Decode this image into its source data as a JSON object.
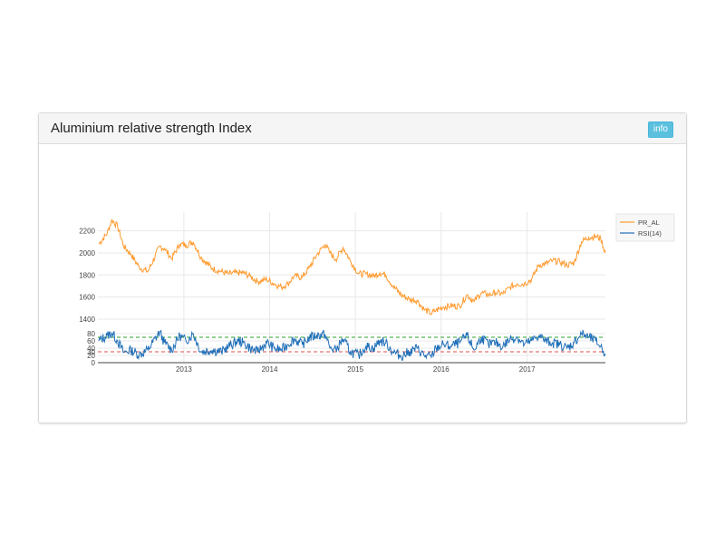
{
  "panel": {
    "title": "Aluminium relative strength Index",
    "info_label": "info"
  },
  "colors": {
    "price": "#ff9a2e",
    "rsi": "#1f6fb8",
    "overbought_line": "#2ca02c",
    "oversold_line": "#e05050",
    "grid": "#e8e8e8"
  },
  "chart_data": [
    {
      "type": "line",
      "series": [
        {
          "name": "PR_AL"
        }
      ],
      "x_range": [
        "2012-01-01",
        "2017-11-30"
      ],
      "y_range": [
        1400,
        2320
      ],
      "y_ticks": [
        1400,
        1600,
        1800,
        2000,
        2200
      ],
      "key_points": [
        [
          "2012-01-05",
          2080
        ],
        [
          "2012-02-10",
          2180
        ],
        [
          "2012-03-01",
          2300
        ],
        [
          "2012-03-25",
          2240
        ],
        [
          "2012-04-20",
          2060
        ],
        [
          "2012-05-20",
          1990
        ],
        [
          "2012-06-25",
          1870
        ],
        [
          "2012-08-01",
          1830
        ],
        [
          "2012-09-20",
          2060
        ],
        [
          "2012-10-10",
          2040
        ],
        [
          "2012-11-10",
          1950
        ],
        [
          "2012-12-15",
          2080
        ],
        [
          "2013-01-10",
          2070
        ],
        [
          "2013-02-10",
          2100
        ],
        [
          "2013-03-15",
          1960
        ],
        [
          "2013-05-01",
          1860
        ],
        [
          "2013-06-10",
          1830
        ],
        [
          "2013-07-10",
          1810
        ],
        [
          "2013-08-20",
          1820
        ],
        [
          "2013-09-10",
          1820
        ],
        [
          "2013-10-10",
          1790
        ],
        [
          "2013-11-10",
          1740
        ],
        [
          "2013-12-20",
          1760
        ],
        [
          "2014-01-20",
          1720
        ],
        [
          "2014-02-20",
          1690
        ],
        [
          "2014-03-20",
          1720
        ],
        [
          "2014-04-15",
          1790
        ],
        [
          "2014-05-20",
          1780
        ],
        [
          "2014-06-20",
          1870
        ],
        [
          "2014-07-20",
          1980
        ],
        [
          "2014-08-25",
          2080
        ],
        [
          "2014-09-15",
          2000
        ],
        [
          "2014-10-10",
          1940
        ],
        [
          "2014-11-10",
          2050
        ],
        [
          "2014-12-10",
          1930
        ],
        [
          "2015-01-15",
          1810
        ],
        [
          "2015-02-15",
          1810
        ],
        [
          "2015-03-20",
          1790
        ],
        [
          "2015-04-15",
          1820
        ],
        [
          "2015-05-10",
          1800
        ],
        [
          "2015-06-10",
          1700
        ],
        [
          "2015-07-15",
          1620
        ],
        [
          "2015-08-20",
          1580
        ],
        [
          "2015-09-20",
          1570
        ],
        [
          "2015-10-20",
          1490
        ],
        [
          "2015-11-20",
          1450
        ],
        [
          "2015-12-10",
          1480
        ],
        [
          "2016-01-10",
          1510
        ],
        [
          "2016-02-10",
          1520
        ],
        [
          "2016-03-20",
          1520
        ],
        [
          "2016-04-20",
          1620
        ],
        [
          "2016-05-20",
          1560
        ],
        [
          "2016-06-20",
          1640
        ],
        [
          "2016-07-20",
          1620
        ],
        [
          "2016-08-20",
          1640
        ],
        [
          "2016-09-20",
          1630
        ],
        [
          "2016-10-20",
          1690
        ],
        [
          "2016-11-20",
          1720
        ],
        [
          "2016-12-20",
          1720
        ],
        [
          "2017-01-20",
          1760
        ],
        [
          "2017-02-20",
          1890
        ],
        [
          "2017-03-20",
          1900
        ],
        [
          "2017-04-20",
          1930
        ],
        [
          "2017-05-20",
          1920
        ],
        [
          "2017-06-20",
          1890
        ],
        [
          "2017-07-20",
          1910
        ],
        [
          "2017-08-20",
          2100
        ],
        [
          "2017-09-20",
          2140
        ],
        [
          "2017-10-20",
          2150
        ],
        [
          "2017-11-10",
          2130
        ],
        [
          "2017-11-30",
          2000
        ]
      ]
    },
    {
      "type": "line",
      "series": [
        {
          "name": "RSI(14)"
        }
      ],
      "x_range": [
        "2012-01-01",
        "2017-11-30"
      ],
      "x_ticks": [
        "2013",
        "2014",
        "2015",
        "2016",
        "2017"
      ],
      "y_range": [
        0,
        95
      ],
      "y_ticks": [
        0,
        20,
        30,
        40,
        60,
        80
      ],
      "reference_lines": [
        70,
        30
      ],
      "key_points": [
        [
          "2012-01-05",
          60
        ],
        [
          "2012-02-10",
          75
        ],
        [
          "2012-03-01",
          82
        ],
        [
          "2012-03-25",
          60
        ],
        [
          "2012-04-20",
          28
        ],
        [
          "2012-05-20",
          35
        ],
        [
          "2012-06-25",
          22
        ],
        [
          "2012-08-01",
          35
        ],
        [
          "2012-09-20",
          85
        ],
        [
          "2012-10-10",
          55
        ],
        [
          "2012-11-10",
          35
        ],
        [
          "2012-12-15",
          75
        ],
        [
          "2013-01-10",
          60
        ],
        [
          "2013-02-10",
          80
        ],
        [
          "2013-03-15",
          30
        ],
        [
          "2013-05-01",
          35
        ],
        [
          "2013-06-10",
          30
        ],
        [
          "2013-07-10",
          45
        ],
        [
          "2013-08-20",
          60
        ],
        [
          "2013-09-10",
          55
        ],
        [
          "2013-10-10",
          40
        ],
        [
          "2013-11-10",
          30
        ],
        [
          "2013-12-20",
          55
        ],
        [
          "2014-01-20",
          40
        ],
        [
          "2014-02-20",
          35
        ],
        [
          "2014-03-20",
          50
        ],
        [
          "2014-04-15",
          65
        ],
        [
          "2014-05-20",
          50
        ],
        [
          "2014-06-20",
          70
        ],
        [
          "2014-07-20",
          75
        ],
        [
          "2014-08-25",
          78
        ],
        [
          "2014-09-15",
          40
        ],
        [
          "2014-10-10",
          35
        ],
        [
          "2014-11-10",
          65
        ],
        [
          "2014-12-10",
          30
        ],
        [
          "2015-01-15",
          20
        ],
        [
          "2015-02-15",
          45
        ],
        [
          "2015-03-20",
          40
        ],
        [
          "2015-04-15",
          60
        ],
        [
          "2015-05-10",
          55
        ],
        [
          "2015-06-10",
          30
        ],
        [
          "2015-07-15",
          18
        ],
        [
          "2015-08-20",
          30
        ],
        [
          "2015-09-20",
          40
        ],
        [
          "2015-10-20",
          20
        ],
        [
          "2015-11-20",
          15
        ],
        [
          "2015-12-10",
          40
        ],
        [
          "2016-01-10",
          50
        ],
        [
          "2016-02-10",
          45
        ],
        [
          "2016-03-20",
          55
        ],
        [
          "2016-04-20",
          75
        ],
        [
          "2016-05-20",
          35
        ],
        [
          "2016-06-20",
          70
        ],
        [
          "2016-07-20",
          50
        ],
        [
          "2016-08-20",
          55
        ],
        [
          "2016-09-20",
          45
        ],
        [
          "2016-10-20",
          65
        ],
        [
          "2016-11-20",
          70
        ],
        [
          "2016-12-20",
          50
        ],
        [
          "2017-01-20",
          60
        ],
        [
          "2017-02-20",
          75
        ],
        [
          "2017-03-20",
          60
        ],
        [
          "2017-04-20",
          55
        ],
        [
          "2017-05-20",
          50
        ],
        [
          "2017-06-20",
          40
        ],
        [
          "2017-07-20",
          55
        ],
        [
          "2017-08-20",
          80
        ],
        [
          "2017-09-20",
          70
        ],
        [
          "2017-10-20",
          60
        ],
        [
          "2017-11-10",
          45
        ],
        [
          "2017-11-30",
          25
        ]
      ]
    }
  ],
  "legend": {
    "items": [
      {
        "label": "PR_AL",
        "color": "#ff9a2e"
      },
      {
        "label": "RSI(14)",
        "color": "#1f6fb8"
      }
    ],
    "position": "top-right"
  }
}
